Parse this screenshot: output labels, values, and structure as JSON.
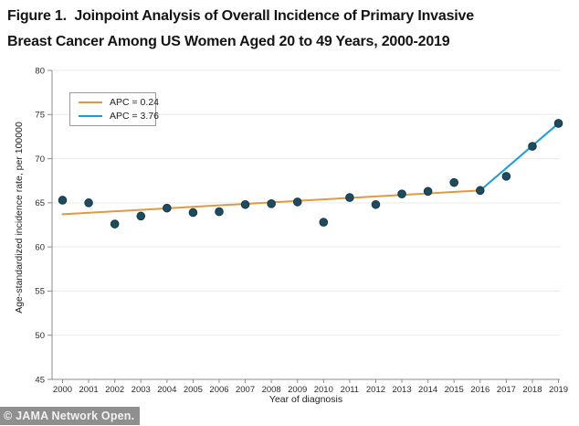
{
  "title": {
    "line1": "Figure 1.  Joinpoint Analysis of Overall Incidence of Primary Invasive",
    "line2": "Breast Cancer Among US Women Aged 20 to 49 Years, 2000-2019"
  },
  "watermark": "© JAMA Network Open.",
  "colors": {
    "trend_orange": "#E09A40",
    "trend_blue": "#1E9CD8",
    "point_fill": "#1F4B5E",
    "point_edge": "#15394A",
    "grid": "#E9E9E9",
    "axis": "#8C8C8C",
    "tick_text": "#2b2b2b",
    "watermark_bg": "#8F8F8F",
    "watermark_text": "#F2F2F2"
  },
  "chart_data": {
    "type": "scatter",
    "title": "Figure 1. Joinpoint Analysis of Overall Incidence of Primary Invasive Breast Cancer Among US Women Aged 20 to 49 Years, 2000-2019",
    "x": [
      2000,
      2001,
      2002,
      2003,
      2004,
      2005,
      2006,
      2007,
      2008,
      2009,
      2010,
      2011,
      2012,
      2013,
      2014,
      2015,
      2016,
      2017,
      2018,
      2019
    ],
    "values": [
      65.3,
      65.0,
      62.6,
      63.5,
      64.4,
      63.9,
      64.0,
      64.8,
      64.9,
      65.1,
      62.8,
      65.6,
      64.8,
      66.0,
      66.3,
      67.3,
      66.4,
      68.0,
      71.4,
      74.0
    ],
    "trend_segments": [
      {
        "label": "APC = 0.24",
        "color": "#E09A40",
        "x": [
          2000,
          2016
        ],
        "y": [
          63.7,
          66.4
        ]
      },
      {
        "label": "APC = 3.76",
        "color": "#1E9CD8",
        "x": [
          2016,
          2019
        ],
        "y": [
          66.4,
          74.0
        ]
      }
    ],
    "legend": [
      {
        "label": "APC = 0.24",
        "color": "#E09A40"
      },
      {
        "label": "APC = 3.76",
        "color": "#1E9CD8"
      }
    ],
    "legend_position": "top-left",
    "xlabel": "Year of diagnosis",
    "ylabel": "Age-standardized incidence rate, per 100000",
    "ylim": [
      45,
      80
    ],
    "yticks": [
      45,
      50,
      55,
      60,
      65,
      70,
      75,
      80
    ],
    "grid": "horizontal"
  }
}
